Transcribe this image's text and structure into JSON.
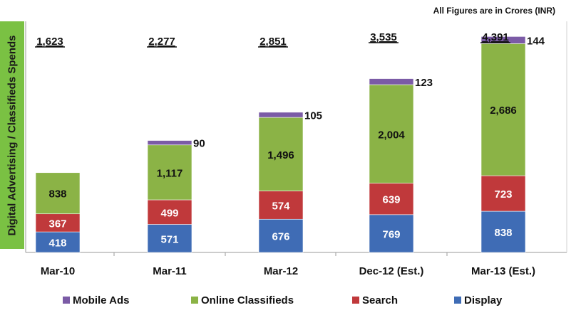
{
  "chart_data": {
    "type": "bar",
    "stacked": true,
    "note": "All Figures are in Crores (INR)",
    "ylabel": "Digital Advertising / Classifieds  Spends",
    "categories": [
      "Mar-10",
      "Mar-11",
      "Mar-12",
      "Dec-12 (Est.)",
      "Mar-13 (Est.)"
    ],
    "totals": [
      "1,623",
      "2,277",
      "2,851",
      "3,535",
      "4,391"
    ],
    "series": [
      {
        "name": "Display",
        "color": "#3f6cb5",
        "values": [
          418,
          571,
          676,
          769,
          838
        ],
        "labels": [
          "418",
          "571",
          "676",
          "769",
          "838"
        ]
      },
      {
        "name": "Search",
        "color": "#c0393b",
        "values": [
          367,
          499,
          574,
          639,
          723
        ],
        "labels": [
          "367",
          "499",
          "574",
          "639",
          "723"
        ]
      },
      {
        "name": "Online Classifieds",
        "color": "#8bb346",
        "values": [
          838,
          1117,
          1496,
          2004,
          2686
        ],
        "labels": [
          "838",
          "1,117",
          "1,496",
          "2,004",
          "2,686"
        ]
      },
      {
        "name": "Mobile Ads",
        "color": "#7b5ba6",
        "values": [
          0,
          90,
          105,
          123,
          144
        ],
        "labels": [
          "",
          "90",
          "105",
          "123",
          "144"
        ]
      }
    ],
    "legend": {
      "placement": "bottom",
      "order": [
        "Mobile Ads",
        "Online Classifieds",
        "Search",
        "Display"
      ]
    },
    "ylim": [
      0,
      4700
    ],
    "grid": false
  }
}
